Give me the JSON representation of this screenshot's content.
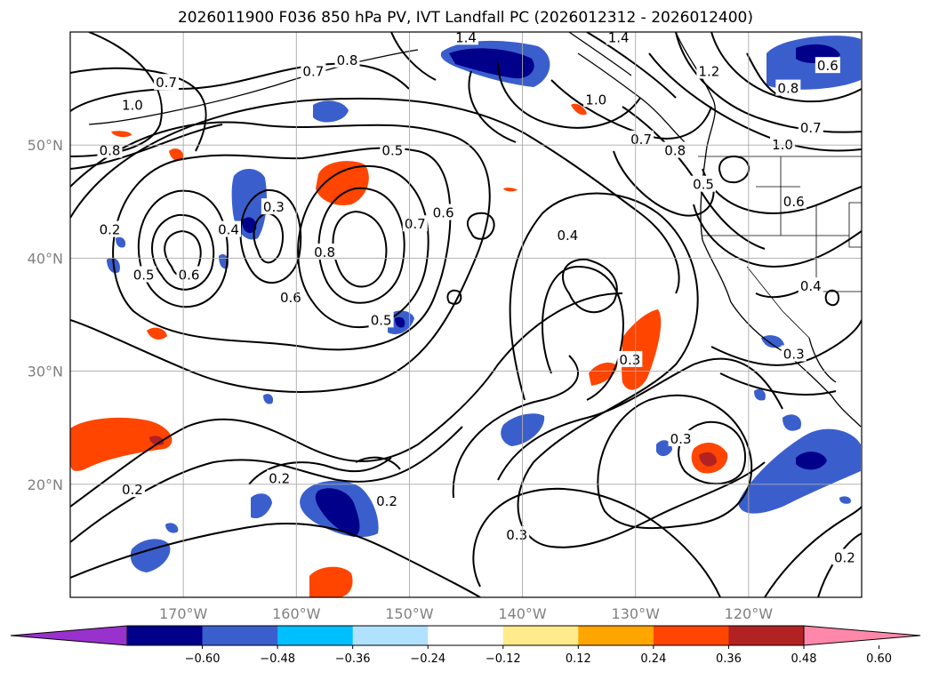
{
  "title": "2026011900 F036 850 hPa PV, IVT Landfall PC (2026012312 - 2026012400)",
  "map": {
    "lon_range": [
      -180,
      -110
    ],
    "lat_range": [
      10,
      60
    ],
    "lon_ticks": [
      {
        "value": -170,
        "label": "170°W"
      },
      {
        "value": -160,
        "label": "160°W"
      },
      {
        "value": -150,
        "label": "150°W"
      },
      {
        "value": -140,
        "label": "140°W"
      },
      {
        "value": -130,
        "label": "130°W"
      },
      {
        "value": -120,
        "label": "120°W"
      }
    ],
    "lat_ticks": [
      {
        "value": 50,
        "label": "50°N"
      },
      {
        "value": 40,
        "label": "40°N"
      },
      {
        "value": 30,
        "label": "30°N"
      },
      {
        "value": 20,
        "label": "20°N"
      }
    ],
    "grid": true,
    "contour_labels": [
      {
        "lon": -171.5,
        "lat": 55.5,
        "text": "0.7"
      },
      {
        "lon": -174.5,
        "lat": 53.5,
        "text": "1.0"
      },
      {
        "lon": -176.5,
        "lat": 49.5,
        "text": "0.8"
      },
      {
        "lon": -176.5,
        "lat": 42.5,
        "text": "0.2"
      },
      {
        "lon": -173.5,
        "lat": 38.5,
        "text": "0.5"
      },
      {
        "lon": -169.5,
        "lat": 38.5,
        "text": "0.6"
      },
      {
        "lon": -166,
        "lat": 42.5,
        "text": "0.4"
      },
      {
        "lon": -162,
        "lat": 44.5,
        "text": "0.3"
      },
      {
        "lon": -160.5,
        "lat": 36.5,
        "text": "0.6"
      },
      {
        "lon": -157.5,
        "lat": 40.5,
        "text": "0.8"
      },
      {
        "lon": -149.5,
        "lat": 43,
        "text": "0.7"
      },
      {
        "lon": -152.5,
        "lat": 34.5,
        "text": "0.5"
      },
      {
        "lon": -151.5,
        "lat": 49.5,
        "text": "0.5"
      },
      {
        "lon": -147,
        "lat": 44,
        "text": "0.6"
      },
      {
        "lon": -136,
        "lat": 42,
        "text": "0.4"
      },
      {
        "lon": -130.5,
        "lat": 31,
        "text": "0.3"
      },
      {
        "lon": -126,
        "lat": 24,
        "text": "0.3"
      },
      {
        "lon": -152,
        "lat": 18.5,
        "text": "0.2"
      },
      {
        "lon": -161.5,
        "lat": 20.5,
        "text": "0.2"
      },
      {
        "lon": -174.5,
        "lat": 19.5,
        "text": "0.2"
      },
      {
        "lon": -140.5,
        "lat": 15.5,
        "text": "0.3"
      },
      {
        "lon": -111.5,
        "lat": 13.5,
        "text": "0.2"
      },
      {
        "lon": -114.5,
        "lat": 37.5,
        "text": "0.4"
      },
      {
        "lon": -116,
        "lat": 45,
        "text": "0.6"
      },
      {
        "lon": -124,
        "lat": 46.5,
        "text": "0.5"
      },
      {
        "lon": -126.5,
        "lat": 49.5,
        "text": "0.8"
      },
      {
        "lon": -129.5,
        "lat": 50.5,
        "text": "0.7"
      },
      {
        "lon": -133.5,
        "lat": 54,
        "text": "1.0"
      },
      {
        "lon": -145,
        "lat": 59.5,
        "text": "1.4"
      },
      {
        "lon": -131.5,
        "lat": 59.5,
        "text": "1.4"
      },
      {
        "lon": -123.5,
        "lat": 56.5,
        "text": "1.2"
      },
      {
        "lon": -117,
        "lat": 50,
        "text": "1.0"
      },
      {
        "lon": -114.5,
        "lat": 51.5,
        "text": "0.7"
      },
      {
        "lon": -113,
        "lat": 57,
        "text": "0.6"
      },
      {
        "lon": -116.5,
        "lat": 55,
        "text": "0.8"
      },
      {
        "lon": -155.5,
        "lat": 57.5,
        "text": "0.8"
      },
      {
        "lon": -158.5,
        "lat": 56.5,
        "text": "0.7"
      },
      {
        "lon": -116,
        "lat": 31.5,
        "text": "0.3"
      }
    ]
  },
  "colorbar": {
    "colors": [
      "#9932cc",
      "#00008b",
      "#3a5fcd",
      "#00bfff",
      "#b0e2ff",
      "#ffffff",
      "#ffeb8b",
      "#ffa500",
      "#ff4500",
      "#b22222",
      "#ff88aa"
    ],
    "tick_labels": [
      "−0.60",
      "−0.48",
      "−0.36",
      "−0.24",
      "−0.12",
      "0.12",
      "0.24",
      "0.36",
      "0.48",
      "0.60"
    ]
  }
}
